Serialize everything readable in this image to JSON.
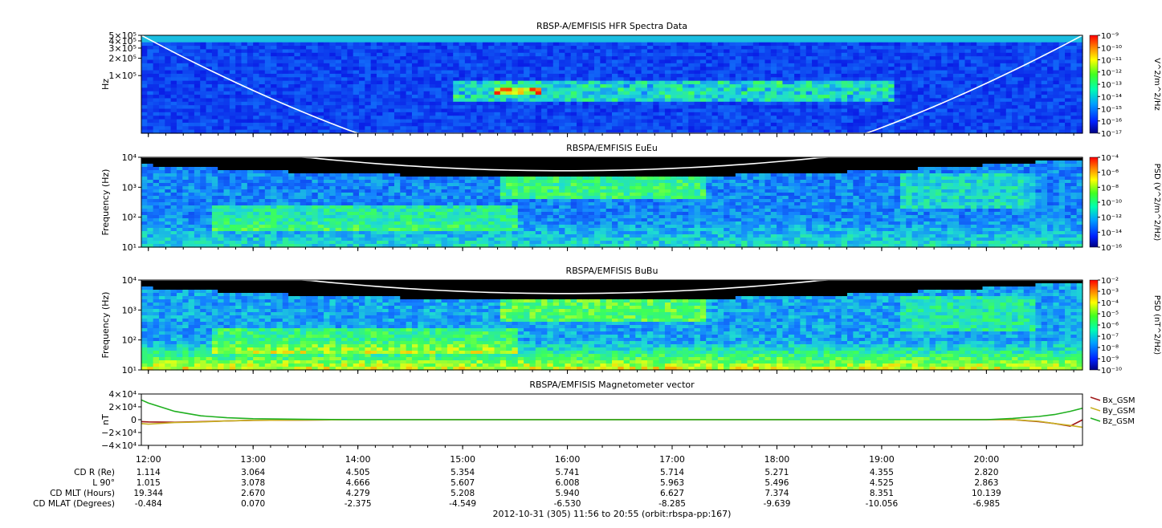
{
  "footer": "2012-10-31 (305) 11:56 to 20:55 (orbit:rbspa-pp:167)",
  "colors": {
    "spec_bg": "#0a0fd0",
    "spec_mid": "#1a8cff",
    "spec_hi": "#20e0c0",
    "spec_green": "#40ff40",
    "spec_yellow": "#ffff00",
    "spec_red": "#ff2000",
    "night": "#000000",
    "bx": "#a01818",
    "by": "#c8b020",
    "bz": "#20b020"
  },
  "chart_data": [
    {
      "type": "heatmap",
      "title": "RBSP-A/EMFISIS  HFR Spectra Data",
      "ylabel": "Hz",
      "ytick_labels": [
        "5×10⁵",
        "4×10⁵",
        "3×10⁵",
        "2×10⁵",
        "1×10⁵"
      ],
      "yticks": [
        500000,
        400000,
        300000,
        200000,
        100000
      ],
      "scale": "log",
      "ylim": [
        10000,
        500000
      ],
      "colorbar_label": "V^2/m^2/Hz",
      "colorbar_ticks": [
        "10⁻⁹",
        "10⁻¹⁰",
        "10⁻¹¹",
        "10⁻¹²",
        "10⁻¹³",
        "10⁻¹⁴",
        "10⁻¹⁵",
        "10⁻¹⁶",
        "10⁻¹⁷"
      ],
      "colorbar_range": [
        -17,
        -9
      ]
    },
    {
      "type": "heatmap",
      "title": "RBSPA/EMFISIS  EuEu",
      "ylabel": "Frequency (Hz)",
      "ytick_labels": [
        "10⁴",
        "10³",
        "10²",
        "10¹"
      ],
      "yticks": [
        10000,
        1000,
        100,
        10
      ],
      "scale": "log",
      "ylim": [
        10,
        10000
      ],
      "colorbar_label": "PSD (V^2/m^2/Hz)",
      "colorbar_ticks": [
        "10⁻⁴",
        "10⁻⁶",
        "10⁻⁸",
        "10⁻¹⁰",
        "10⁻¹²",
        "10⁻¹⁴",
        "10⁻¹⁶"
      ],
      "colorbar_range": [
        -16,
        -4
      ]
    },
    {
      "type": "heatmap",
      "title": "RBSPA/EMFISIS  BuBu",
      "ylabel": "Frequency (Hz)",
      "ytick_labels": [
        "10⁴",
        "10³",
        "10²",
        "10¹"
      ],
      "yticks": [
        10000,
        1000,
        100,
        10
      ],
      "scale": "log",
      "ylim": [
        10,
        10000
      ],
      "colorbar_label": "PSD (nT^2/Hz)",
      "colorbar_ticks": [
        "10⁻²",
        "10⁻³",
        "10⁻⁴",
        "10⁻⁵",
        "10⁻⁶",
        "10⁻⁷",
        "10⁻⁸",
        "10⁻⁹",
        "10⁻¹⁰"
      ],
      "colorbar_range": [
        -10,
        -2
      ]
    },
    {
      "type": "line",
      "title": "RBSPA/EMFISIS  Magnetometer vector",
      "ylabel": "nT",
      "ytick_labels": [
        "4×10⁴",
        "2×10⁴",
        "0",
        "−2×10⁴",
        "−4×10⁴"
      ],
      "yticks": [
        40000,
        20000,
        0,
        -20000,
        -40000
      ],
      "ylim": [
        -40000,
        40000
      ],
      "x": [
        11.93,
        12.0,
        12.25,
        12.5,
        12.75,
        13.0,
        13.5,
        14.0,
        15.0,
        16.0,
        17.0,
        18.0,
        19.0,
        19.5,
        20.0,
        20.25,
        20.5,
        20.65,
        20.8,
        20.92
      ],
      "series": [
        {
          "name": "Bx_GSM",
          "values": [
            -3000,
            -3500,
            -4000,
            -3000,
            -2000,
            -1000,
            -500,
            0,
            0,
            0,
            0,
            0,
            0,
            0,
            0,
            0,
            -3000,
            -6000,
            -10000,
            0
          ]
        },
        {
          "name": "By_GSM",
          "values": [
            -6000,
            -7000,
            -4500,
            -3500,
            -2000,
            -1000,
            -500,
            0,
            0,
            0,
            0,
            0,
            0,
            0,
            0,
            0,
            -2500,
            -6000,
            -9000,
            -12000
          ]
        },
        {
          "name": "Bz_GSM",
          "values": [
            31000,
            26000,
            13000,
            6000,
            3000,
            1500,
            500,
            0,
            0,
            0,
            0,
            0,
            0,
            0,
            0,
            2000,
            5000,
            8000,
            13000,
            18000
          ]
        }
      ]
    }
  ],
  "x_axis": {
    "ticks": [
      12,
      13,
      14,
      15,
      16,
      17,
      18,
      19,
      20
    ],
    "tick_labels": [
      "12:00",
      "13:00",
      "14:00",
      "15:00",
      "16:00",
      "17:00",
      "18:00",
      "19:00",
      "20:00"
    ],
    "range": [
      11.933,
      20.917
    ]
  },
  "ephemeris": {
    "row_labels": [
      "CD R (Re)",
      "L 90°",
      "CD MLT (Hours)",
      "CD MLAT (Degrees)"
    ],
    "rows": [
      [
        "1.114",
        "3.064",
        "4.505",
        "5.354",
        "5.741",
        "5.714",
        "5.271",
        "4.355",
        "2.820"
      ],
      [
        "1.015",
        "3.078",
        "4.666",
        "5.607",
        "6.008",
        "5.963",
        "5.496",
        "4.525",
        "2.863"
      ],
      [
        "19.344",
        "2.670",
        "4.279",
        "5.208",
        "5.940",
        "6.627",
        "7.374",
        "8.351",
        "10.139"
      ],
      [
        "-0.484",
        "0.070",
        "-2.375",
        "-4.549",
        "-6.530",
        "-8.285",
        "-9.639",
        "-10.056",
        "-6.985"
      ]
    ]
  }
}
